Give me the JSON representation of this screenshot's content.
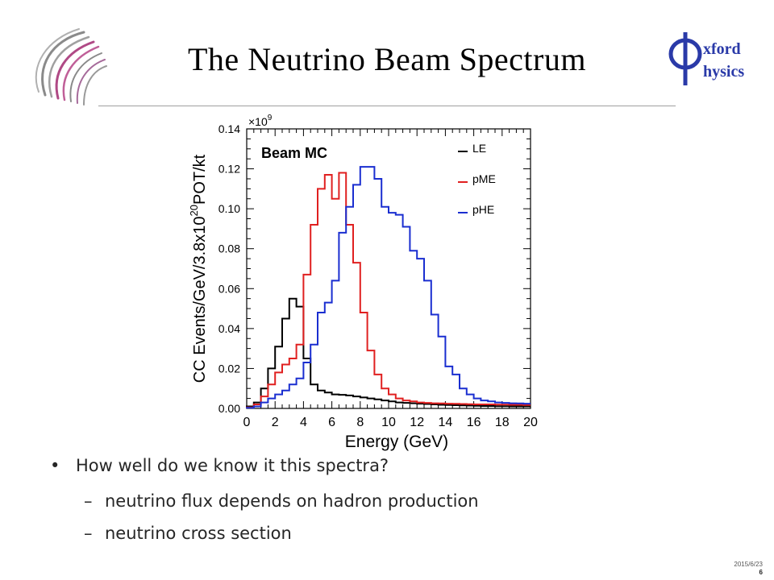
{
  "slide": {
    "title": "The Neutrino Beam Spectrum",
    "logo_right_letters": [
      "xford",
      "hysics"
    ],
    "bullets": {
      "main": "How well do we know it this spectra?",
      "sub": [
        "neutrino flux depends on hadron production",
        "neutrino cross section"
      ],
      "bullet_glyph": "•",
      "dash_glyph": "–"
    },
    "footer": {
      "date": "2015/6/23",
      "page": "6"
    }
  },
  "chart_data": {
    "type": "line",
    "title": "",
    "annotation": "Beam MC",
    "xlabel": "Energy (GeV)",
    "ylabel": "CC Events/GeV/3.8x10^20POT/kt",
    "ylabel_parts": {
      "main": "CC Events/GeV/3.8x10",
      "sup": "20",
      "tail": "POT/kt"
    },
    "multiplier": {
      "base": "×10",
      "exp": "9"
    },
    "xlim": [
      0,
      20
    ],
    "ylim": [
      0,
      0.14
    ],
    "xticks": [
      "0",
      "2",
      "4",
      "6",
      "8",
      "10",
      "12",
      "14",
      "16",
      "18",
      "20"
    ],
    "yticks": [
      "0.00",
      "0.02",
      "0.04",
      "0.06",
      "0.08",
      "0.10",
      "0.12",
      "0.14"
    ],
    "legend_placement": "top-right",
    "grid": false,
    "bin_edges": [
      0,
      0.5,
      1,
      1.5,
      2,
      2.5,
      3,
      3.5,
      4,
      4.5,
      5,
      5.5,
      6,
      6.5,
      7,
      7.5,
      8,
      8.5,
      9,
      9.5,
      10,
      10.5,
      11,
      11.5,
      12,
      12.5,
      13,
      13.5,
      14,
      14.5,
      15,
      15.5,
      16,
      16.5,
      17,
      17.5,
      18,
      18.5,
      19,
      19.5,
      20
    ],
    "series": [
      {
        "name": "LE",
        "color": "#000000",
        "values": [
          0.001,
          0.003,
          0.01,
          0.02,
          0.031,
          0.045,
          0.055,
          0.051,
          0.025,
          0.012,
          0.009,
          0.008,
          0.007,
          0.0068,
          0.0065,
          0.006,
          0.0055,
          0.005,
          0.0045,
          0.004,
          0.0035,
          0.003,
          0.0028,
          0.0026,
          0.0024,
          0.0022,
          0.002,
          0.0018,
          0.0017,
          0.0016,
          0.0015,
          0.0014,
          0.0013,
          0.0012,
          0.0012,
          0.0011,
          0.0011,
          0.001,
          0.001,
          0.001
        ]
      },
      {
        "name": "pME",
        "color": "#e02020",
        "values": [
          0.0005,
          0.002,
          0.006,
          0.012,
          0.018,
          0.022,
          0.025,
          0.032,
          0.067,
          0.092,
          0.11,
          0.117,
          0.105,
          0.118,
          0.092,
          0.073,
          0.048,
          0.029,
          0.017,
          0.01,
          0.007,
          0.005,
          0.004,
          0.0035,
          0.003,
          0.0028,
          0.0026,
          0.0025,
          0.0024,
          0.0023,
          0.0022,
          0.0021,
          0.002,
          0.002,
          0.002,
          0.0019,
          0.0019,
          0.0018,
          0.0018,
          0.0017
        ]
      },
      {
        "name": "pHE",
        "color": "#1a2ed0",
        "values": [
          0.0003,
          0.001,
          0.003,
          0.005,
          0.007,
          0.009,
          0.012,
          0.015,
          0.023,
          0.032,
          0.048,
          0.053,
          0.064,
          0.088,
          0.101,
          0.112,
          0.121,
          0.121,
          0.115,
          0.101,
          0.098,
          0.097,
          0.091,
          0.079,
          0.075,
          0.064,
          0.047,
          0.036,
          0.021,
          0.017,
          0.01,
          0.007,
          0.005,
          0.004,
          0.0035,
          0.003,
          0.0028,
          0.0026,
          0.0025,
          0.0024
        ]
      }
    ]
  }
}
